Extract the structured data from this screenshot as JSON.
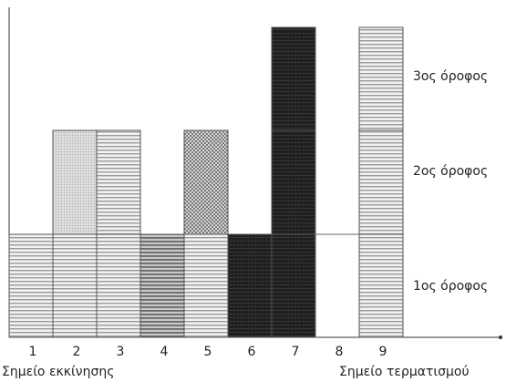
{
  "floors": [
    "1ος όροφος",
    "2ος όροφος",
    "3ος όροφος"
  ],
  "columns": [
    {
      "num": "1",
      "floors": 1,
      "pattern": "lines"
    },
    {
      "num": "2",
      "floors": 2,
      "pattern": "dots"
    },
    {
      "num": "3",
      "floors": 2,
      "pattern": "lines"
    },
    {
      "num": "4",
      "floors": 1,
      "pattern": "lines-dark"
    },
    {
      "num": "5",
      "floors": 2,
      "pattern": "dots-dark"
    },
    {
      "num": "6",
      "floors": 1,
      "pattern": "black"
    },
    {
      "num": "7",
      "floors": 3,
      "pattern": "black"
    },
    {
      "num": "8",
      "floors": 0,
      "pattern": "none"
    },
    {
      "num": "9",
      "floors": 3,
      "pattern": "lines"
    }
  ],
  "start_label": "Σημείο εκκίνησης",
  "end_label": "Σημείο τερματισμού"
}
